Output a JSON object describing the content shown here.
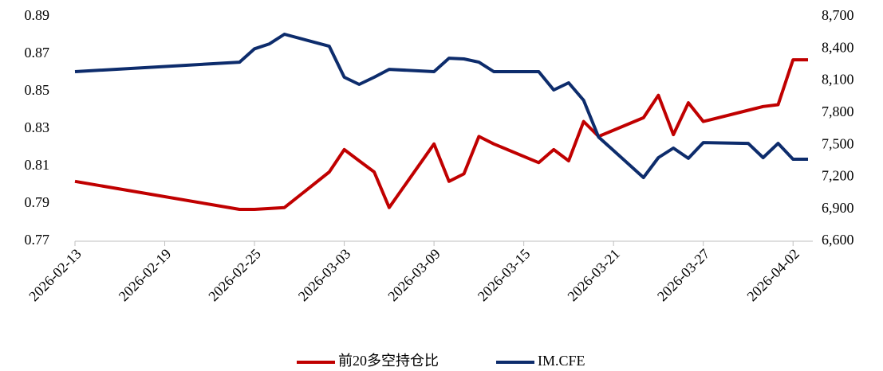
{
  "chart_data": {
    "type": "line",
    "x": [
      "2026-02-13",
      "2026-02-24",
      "2026-02-25",
      "2026-02-26",
      "2026-02-27",
      "2026-03-02",
      "2026-03-03",
      "2026-03-04",
      "2026-03-05",
      "2026-03-06",
      "2026-03-09",
      "2026-03-10",
      "2026-03-11",
      "2026-03-12",
      "2026-03-13",
      "2026-03-16",
      "2026-03-17",
      "2026-03-18",
      "2026-03-19",
      "2026-03-20",
      "2026-03-23",
      "2026-03-24",
      "2026-03-25",
      "2026-03-26",
      "2026-03-27",
      "2026-03-30",
      "2026-03-31",
      "2026-04-01",
      "2026-04-02",
      "2026-04-03"
    ],
    "xlim": [
      "2026-02-13",
      "2026-04-03"
    ],
    "xticks": [
      "2026-02-13",
      "2026-02-19",
      "2026-02-25",
      "2026-03-03",
      "2026-03-09",
      "2026-03-15",
      "2026-03-21",
      "2026-03-27",
      "2026-04-02"
    ],
    "ylim": [
      0.77,
      0.89
    ],
    "yticks": [
      0.77,
      0.79,
      0.81,
      0.83,
      0.85,
      0.87,
      0.89
    ],
    "y2lim": [
      6600,
      8700
    ],
    "y2ticks": [
      {
        "value": 6600,
        "label": "6,600"
      },
      {
        "value": 6900,
        "label": "6,900"
      },
      {
        "value": 7200,
        "label": "7,200"
      },
      {
        "value": 7500,
        "label": "7,500"
      },
      {
        "value": 7800,
        "label": "7,800"
      },
      {
        "value": 8100,
        "label": "8,100"
      },
      {
        "value": 8400,
        "label": "8,400"
      },
      {
        "value": 8700,
        "label": "8,700"
      }
    ],
    "legend": "bottom",
    "series": [
      {
        "name": "前20多空持仓比",
        "color": "#c00000",
        "values": [
          0.802,
          0.787,
          0.787,
          0.7875,
          0.788,
          0.807,
          0.819,
          0.813,
          0.807,
          0.788,
          0.822,
          0.802,
          0.806,
          0.826,
          0.822,
          0.812,
          0.819,
          0.813,
          0.834,
          0.826,
          0.836,
          0.848,
          0.827,
          0.844,
          0.834,
          0.84,
          0.842,
          0.843,
          0.867,
          0.867
        ]
      },
      {
        "name": "IM.CFE",
        "color": "#0d2c6c",
        "axis": "y2",
        "values": [
          8186,
          8275,
          8400,
          8446,
          8536,
          8424,
          8134,
          8067,
          8134,
          8208,
          8186,
          8312,
          8305,
          8275,
          8186,
          8186,
          8015,
          8082,
          7918,
          7575,
          7196,
          7382,
          7471,
          7375,
          7523,
          7515,
          7382,
          7515,
          7367,
          7367
        ]
      }
    ]
  }
}
